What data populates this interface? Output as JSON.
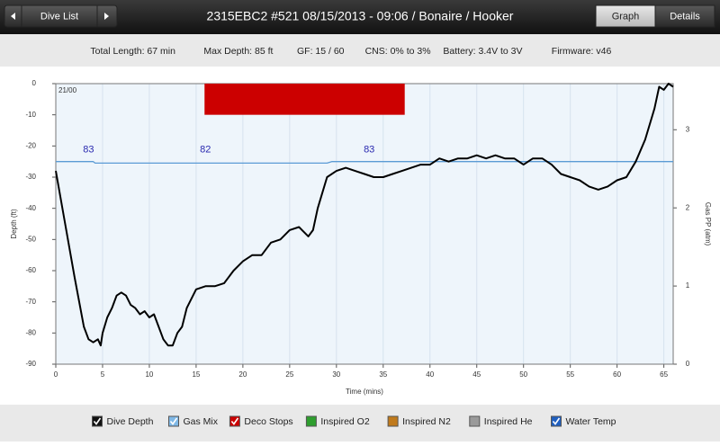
{
  "header": {
    "back": "Dive List",
    "title": "2315EBC2 #521 08/15/2013 - 09:06  / Bonaire / Hooker",
    "tabs": [
      "Graph",
      "Details"
    ]
  },
  "stats": [
    "Total Length: 67 min",
    "Max Depth: 85 ft",
    "GF: 15 / 60",
    "CNS: 0% to 3%",
    "Battery: 3.4V to 3V",
    "Firmware: v46"
  ],
  "chart_data": {
    "type": "line",
    "corner_label": "21/00",
    "ylabel": "Depth (ft)",
    "y2label": "Gas PP (atm)",
    "xlabel": "Time (mins)",
    "xlim": [
      0,
      66
    ],
    "xticks": [
      0,
      5,
      10,
      15,
      20,
      25,
      30,
      35,
      40,
      45,
      50,
      55,
      60,
      65
    ],
    "ylim": [
      -90,
      0
    ],
    "yticks": [
      0,
      -10,
      -20,
      -30,
      -40,
      -50,
      -60,
      -70,
      -80,
      -90
    ],
    "y2lim": [
      0,
      3.59
    ],
    "y2ticks": [
      0,
      1,
      2,
      3
    ],
    "grid": true,
    "series": [
      {
        "color": "#000000",
        "x": [
          0,
          1,
          2,
          3,
          3.5,
          4,
          4.5,
          4.8,
          5,
          5.5,
          6,
          6.5,
          7,
          7.5,
          8,
          8.5,
          9,
          9.5,
          10,
          10.5,
          11,
          11.5,
          12,
          12.5,
          13,
          13.5,
          14,
          14.5,
          15,
          16,
          17,
          18,
          19,
          20,
          21,
          22,
          23,
          24,
          25,
          26,
          27,
          27.5,
          28,
          28.5,
          29,
          30,
          31,
          32,
          33,
          34,
          35,
          36,
          37,
          38,
          39,
          40,
          41,
          42,
          43,
          44,
          45,
          46,
          47,
          48,
          49,
          50,
          51,
          52,
          53,
          54,
          55,
          56,
          57,
          58,
          59,
          60,
          61,
          62,
          63,
          64,
          64.5,
          65,
          65.5,
          66
        ],
        "values": [
          -28,
          -45,
          -62,
          -78,
          -82,
          -83,
          -82,
          -84,
          -80,
          -75,
          -72,
          -68,
          -67,
          -68,
          -71,
          -72,
          -74,
          -73,
          -75,
          -74,
          -78,
          -82,
          -84,
          -84,
          -80,
          -78,
          -72,
          -69,
          -66,
          -65,
          -65,
          -64,
          -60,
          -57,
          -55,
          -55,
          -51,
          -50,
          -47,
          -46,
          -49,
          -47,
          -40,
          -35,
          -30,
          -28,
          -27,
          -28,
          -29,
          -30,
          -30,
          -29,
          -28,
          -27,
          -26,
          -26,
          -24,
          -25,
          -24,
          -24,
          -23,
          -24,
          -23,
          -24,
          -24,
          -26,
          -24,
          -24,
          -26,
          -29,
          -30,
          -31,
          -33,
          -34,
          -33,
          -31,
          -30,
          -25,
          -18,
          -8,
          -1,
          -2,
          0,
          -1
        ]
      },
      {
        "color": "#5b9bd5",
        "x": [
          0,
          4,
          4.2,
          29,
          29.5,
          66
        ],
        "values": [
          -25,
          -25,
          -25.5,
          -25.5,
          -25,
          -25
        ]
      }
    ],
    "deco_stops": [
      {
        "start": 15.9,
        "end": 37.3,
        "top": 0,
        "bottom": -10,
        "color": "#cc0000"
      }
    ],
    "gas_labels": [
      {
        "text": "83",
        "x": 3.5
      },
      {
        "text": "82",
        "x": 16
      },
      {
        "text": "83",
        "x": 33.5
      }
    ],
    "legend": [
      {
        "label": "Dive Depth",
        "color": "#111111",
        "checked": true
      },
      {
        "label": "Gas Mix",
        "color": "#7fb8e6",
        "checked": true
      },
      {
        "label": "Deco Stops",
        "color": "#cc0000",
        "checked": true
      },
      {
        "label": "Inspired O2",
        "color": "#2e9e2e",
        "checked": false
      },
      {
        "label": "Inspired N2",
        "color": "#c07a1c",
        "checked": false
      },
      {
        "label": "Inspired He",
        "color": "#9a9a9a",
        "checked": false
      },
      {
        "label": "Water Temp",
        "color": "#1f5fbf",
        "checked": true
      }
    ]
  }
}
